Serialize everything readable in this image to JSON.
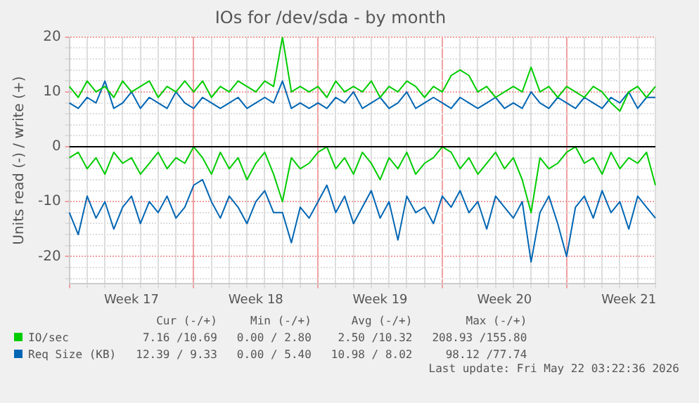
{
  "chart_data": {
    "type": "line",
    "title": "IOs for /dev/sda - by month",
    "ylabel": "Units read (-) / write (+)",
    "categories": [
      null,
      null,
      null,
      null,
      null,
      null,
      null,
      "Week 17",
      null,
      null,
      null,
      null,
      null,
      null,
      null,
      null,
      null,
      null,
      null,
      null,
      null,
      "Week 18",
      null,
      null,
      null,
      null,
      null,
      null,
      null,
      null,
      null,
      null,
      null,
      null,
      null,
      "Week 19",
      null,
      null,
      null,
      null,
      null,
      null,
      null,
      null,
      null,
      null,
      null,
      null,
      null,
      "Week 20",
      null,
      null,
      null,
      null,
      null,
      null,
      null,
      null,
      null,
      null,
      null,
      null,
      null,
      "Week 21",
      null,
      null,
      null
    ],
    "ylim": [
      -25,
      20
    ],
    "yticks": [
      {
        "value": -24,
        "label": null
      },
      {
        "value": -22,
        "label": null
      },
      -20,
      {
        "value": -18,
        "label": null
      },
      {
        "value": -16,
        "label": null
      },
      {
        "value": -14,
        "label": null
      },
      {
        "value": -12,
        "label": null
      },
      -10,
      {
        "value": -8,
        "label": null
      },
      {
        "value": -6,
        "label": null
      },
      {
        "value": -4,
        "label": null
      },
      {
        "value": -2,
        "label": null
      },
      0,
      {
        "value": 2,
        "label": null
      },
      {
        "value": 4,
        "label": null
      },
      {
        "value": 6,
        "label": null
      },
      {
        "value": 8,
        "label": null
      },
      10,
      {
        "value": 12,
        "label": null
      },
      {
        "value": 14,
        "label": null
      },
      {
        "value": 16,
        "label": null
      },
      {
        "value": 18,
        "label": null
      },
      20
    ],
    "grid": true,
    "legend": "bottom",
    "marker": "none",
    "line_style": "solid",
    "ref_lines": [
      {
        "axis": "y",
        "value": 0,
        "color": "#000000"
      }
    ],
    "series": [
      {
        "name": "IO/sec",
        "color": "#00cc00",
        "values": [
          11,
          9,
          12,
          10,
          11,
          9,
          12,
          10,
          11,
          12,
          9,
          11,
          10,
          12,
          10,
          12,
          9,
          11,
          10,
          12,
          11,
          10,
          12,
          11,
          20,
          10,
          11,
          10,
          11,
          9,
          12,
          10,
          11,
          10,
          12,
          9,
          11,
          10,
          12,
          11,
          9,
          11,
          10,
          13,
          14,
          13,
          10,
          11,
          9,
          10,
          11,
          10,
          14.5,
          10,
          11,
          9,
          11,
          10,
          9,
          11,
          10,
          8,
          6.5,
          10,
          11,
          9,
          11
        ]
      },
      {
        "name": "Req Size (KB)",
        "color": "#0066b3",
        "values": [
          8,
          7,
          9,
          8,
          12,
          7,
          8,
          10,
          7,
          9,
          8,
          7,
          10,
          8,
          7,
          9,
          8,
          7,
          8,
          9,
          7,
          8,
          9,
          8,
          12,
          7,
          8,
          7,
          8,
          7,
          9,
          8,
          10,
          7,
          8,
          9,
          7,
          8,
          10,
          7,
          8,
          9,
          8,
          7,
          9,
          8,
          7,
          8,
          9,
          7,
          8,
          7,
          10,
          8,
          7,
          9,
          8,
          7,
          9,
          8,
          7,
          9,
          8,
          10,
          7,
          9,
          9
        ]
      },
      {
        "color": "#00cc00",
        "values": [
          -2,
          -1,
          -4,
          -2,
          -5,
          -1,
          -3,
          -2,
          -5,
          -3,
          -1,
          -4,
          -2,
          -3,
          0,
          -2,
          -5,
          -1,
          -4,
          -2,
          -6,
          -3,
          -1,
          -5,
          -10,
          -2,
          -4,
          -3,
          -1,
          0,
          -4,
          -2,
          -5,
          -1,
          -3,
          -6,
          -2,
          -4,
          -1,
          -5,
          -3,
          -2,
          0,
          -1,
          -4,
          -2,
          -5,
          -3,
          -1,
          -4,
          -2,
          -6,
          -12,
          -2,
          -4,
          -3,
          -1,
          0,
          -3,
          -2,
          -5,
          -1,
          -4,
          -2,
          -3,
          -1,
          -7
        ]
      },
      {
        "color": "#0066b3",
        "values": [
          -12,
          -16,
          -9,
          -13,
          -10,
          -15,
          -11,
          -9,
          -14,
          -10,
          -12,
          -9,
          -13,
          -11,
          -7,
          -6,
          -10,
          -13,
          -9,
          -11,
          -14,
          -10,
          -8,
          -12,
          -12,
          -17.5,
          -11,
          -13,
          -10,
          -7,
          -12,
          -9,
          -14,
          -11,
          -8,
          -13,
          -10,
          -17,
          -9,
          -12,
          -11,
          -14,
          -9,
          -11,
          -8,
          -12,
          -10,
          -15,
          -9,
          -11,
          -13,
          -10,
          -21,
          -12,
          -9,
          -14,
          -20,
          -11,
          -9,
          -13,
          -8,
          -12,
          -10,
          -15,
          -9,
          -11,
          -13
        ]
      }
    ],
    "annotations": [
      "Cur (-/+)",
      "Min (-/+)",
      "Avg (-/+)",
      "Max (-/+)",
      "7.16 /10.69",
      "0.00 / 2.80",
      "2.50 /10.32",
      "208.93 /155.80",
      "12.39 / 9.33",
      "0.00 / 5.40",
      "10.98 / 8.02",
      "98.12 /77.74",
      "Last update: Fri May 22 03:22:36 2026"
    ]
  }
}
